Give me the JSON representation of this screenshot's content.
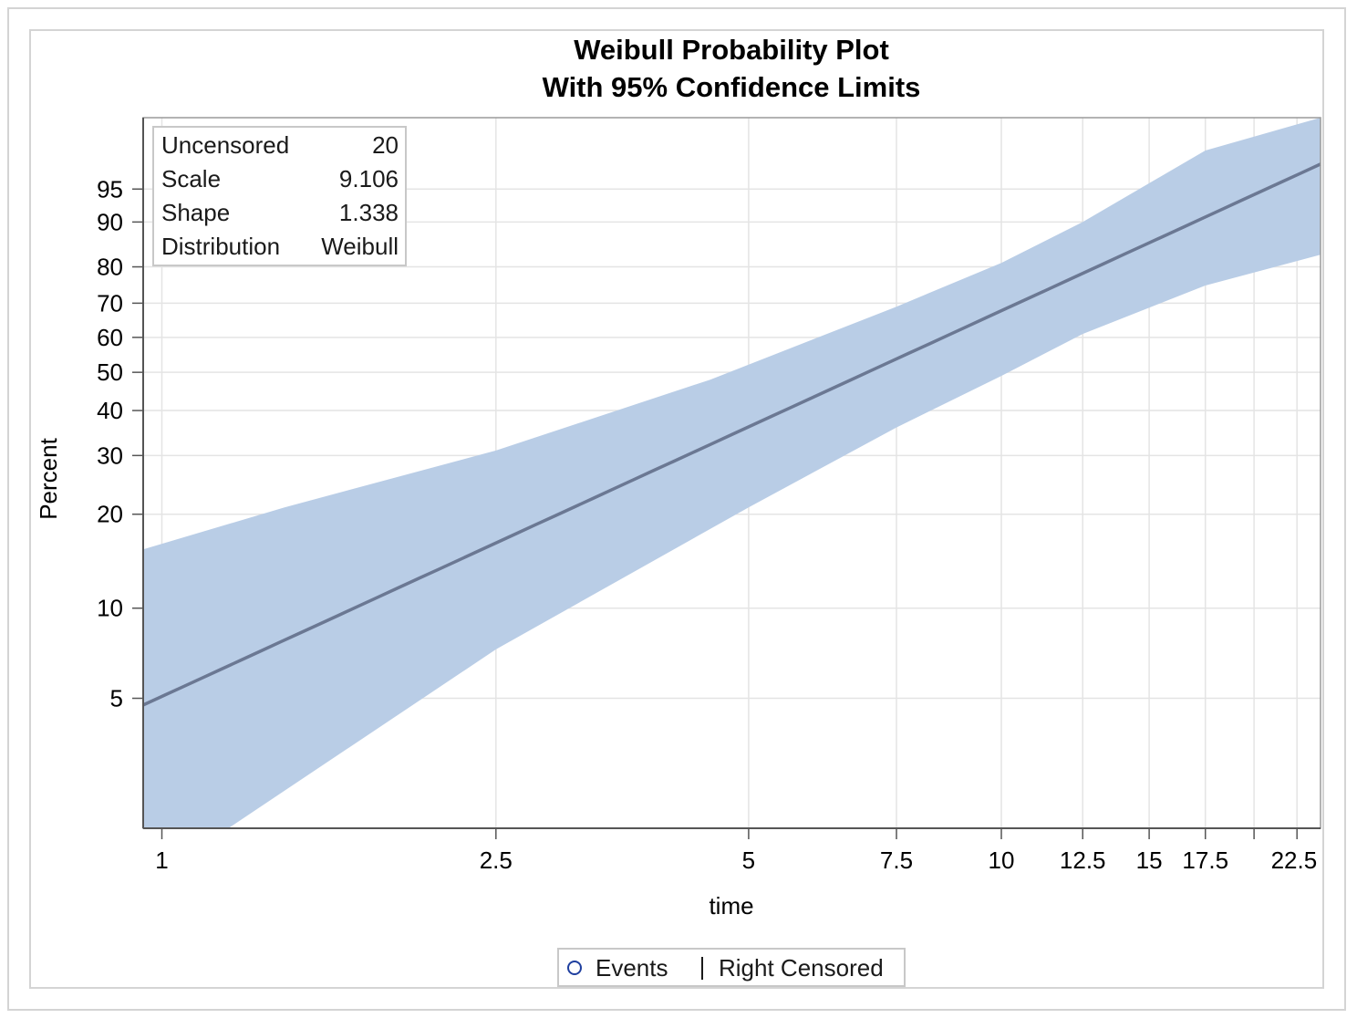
{
  "chart_data": {
    "type": "line",
    "title": "Weibull Probability Plot",
    "subtitle": "With 95% Confidence Limits",
    "xlabel": "time",
    "ylabel": "Percent",
    "x_scale": "log",
    "y_scale": "weibull",
    "xlim": [
      0.95,
      24
    ],
    "ylim": [
      1.8,
      99.5
    ],
    "grid": true,
    "x_ticks": [
      {
        "value": 1,
        "label": "1",
        "labeled": true
      },
      {
        "value": 2.5,
        "label": "2.5",
        "labeled": true
      },
      {
        "value": 5,
        "label": "5",
        "labeled": true
      },
      {
        "value": 7.5,
        "label": "7.5",
        "labeled": true
      },
      {
        "value": 10,
        "label": "10",
        "labeled": true
      },
      {
        "value": 12.5,
        "label": "12.5",
        "labeled": true
      },
      {
        "value": 15,
        "label": "15",
        "labeled": true
      },
      {
        "value": 17.5,
        "label": "17.5",
        "labeled": true
      },
      {
        "value": 20,
        "label": "",
        "labeled": false
      },
      {
        "value": 22.5,
        "label": "22.5",
        "labeled": true
      }
    ],
    "y_ticks": [
      5,
      10,
      20,
      30,
      40,
      50,
      60,
      70,
      80,
      90,
      95
    ],
    "inset_table": {
      "placement": "top-left",
      "rows": [
        {
          "label": "Uncensored",
          "value": "20"
        },
        {
          "label": "Scale",
          "value": "9.106"
        },
        {
          "label": "Shape",
          "value": "1.338"
        },
        {
          "label": "Distribution",
          "value": "Weibull"
        }
      ]
    },
    "fit_line": {
      "scale": 9.106,
      "shape": 1.338,
      "color": "#6b7893"
    },
    "confidence_band": {
      "color": "#b9cde6",
      "upper": [
        {
          "x": 0.95,
          "y": 15.5
        },
        {
          "x": 1.4,
          "y": 21
        },
        {
          "x": 2.5,
          "y": 31
        },
        {
          "x": 4.5,
          "y": 48
        },
        {
          "x": 7.5,
          "y": 69
        },
        {
          "x": 10,
          "y": 81
        },
        {
          "x": 12.5,
          "y": 90
        },
        {
          "x": 17.5,
          "y": 98.3
        },
        {
          "x": 24,
          "y": 99.9
        }
      ],
      "lower": [
        {
          "x": 0.95,
          "y": 1.5
        },
        {
          "x": 1.2,
          "y": 1.8
        },
        {
          "x": 2.5,
          "y": 7.3
        },
        {
          "x": 5,
          "y": 21
        },
        {
          "x": 7.5,
          "y": 36
        },
        {
          "x": 10,
          "y": 49
        },
        {
          "x": 12.5,
          "y": 61
        },
        {
          "x": 17.5,
          "y": 75
        },
        {
          "x": 24,
          "y": 83
        }
      ]
    },
    "legend": {
      "placement": "bottom-center",
      "items": [
        {
          "marker": "circle",
          "label": "Events",
          "color": "#1f3f9f"
        },
        {
          "marker": "bar",
          "label": "Right Censored",
          "color": "#1a1a1a"
        }
      ]
    },
    "colors": {
      "grid": "#e4e4e4",
      "axis": "#555555",
      "frame": "#d4d4d4"
    }
  }
}
